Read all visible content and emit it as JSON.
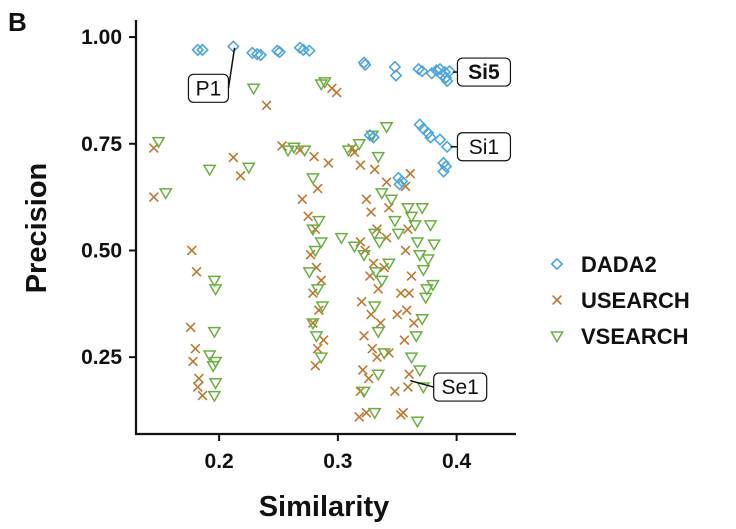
{
  "panel_label": "B",
  "colors": {
    "DADA2": "#4da6dc",
    "USEARCH": "#c07830",
    "VSEARCH": "#6ab040",
    "axis": "#111111"
  },
  "chart_data": {
    "type": "scatter",
    "xlabel": "Similarity",
    "ylabel": "Precision",
    "xlim": [
      0.13,
      0.45
    ],
    "ylim": [
      0.07,
      1.04
    ],
    "x_ticks": [
      0.2,
      0.3,
      0.4
    ],
    "x_tick_labels": [
      "0.2",
      "0.3",
      "0.4"
    ],
    "y_ticks": [
      0.25,
      0.5,
      0.75,
      1.0
    ],
    "y_tick_labels": [
      "0.25",
      "0.50",
      "0.75",
      "1.00"
    ],
    "grid": false,
    "legend_position": "right",
    "series": [
      {
        "name": "DADA2",
        "marker": "diamond-open",
        "points": [
          [
            0.182,
            0.97
          ],
          [
            0.186,
            0.97
          ],
          [
            0.212,
            0.978
          ],
          [
            0.228,
            0.963
          ],
          [
            0.232,
            0.96
          ],
          [
            0.235,
            0.958
          ],
          [
            0.249,
            0.968
          ],
          [
            0.251,
            0.965
          ],
          [
            0.268,
            0.975
          ],
          [
            0.271,
            0.97
          ],
          [
            0.276,
            0.968
          ],
          [
            0.322,
            0.94
          ],
          [
            0.323,
            0.935
          ],
          [
            0.348,
            0.93
          ],
          [
            0.349,
            0.91
          ],
          [
            0.368,
            0.925
          ],
          [
            0.371,
            0.92
          ],
          [
            0.379,
            0.915
          ],
          [
            0.383,
            0.922
          ],
          [
            0.386,
            0.925
          ],
          [
            0.388,
            0.91
          ],
          [
            0.39,
            0.918
          ],
          [
            0.391,
            0.905
          ],
          [
            0.392,
            0.897
          ],
          [
            0.394,
            0.92
          ],
          [
            0.327,
            0.77
          ],
          [
            0.33,
            0.765
          ],
          [
            0.369,
            0.795
          ],
          [
            0.372,
            0.785
          ],
          [
            0.376,
            0.775
          ],
          [
            0.378,
            0.765
          ],
          [
            0.386,
            0.76
          ],
          [
            0.392,
            0.743
          ],
          [
            0.389,
            0.705
          ],
          [
            0.391,
            0.697
          ],
          [
            0.389,
            0.685
          ],
          [
            0.351,
            0.67
          ],
          [
            0.354,
            0.662
          ],
          [
            0.352,
            0.655
          ]
        ]
      },
      {
        "name": "USEARCH",
        "marker": "x",
        "points": [
          [
            0.145,
            0.74
          ],
          [
            0.145,
            0.625
          ],
          [
            0.212,
            0.718
          ],
          [
            0.218,
            0.675
          ],
          [
            0.24,
            0.84
          ],
          [
            0.295,
            0.88
          ],
          [
            0.299,
            0.87
          ],
          [
            0.253,
            0.745
          ],
          [
            0.268,
            0.735
          ],
          [
            0.28,
            0.72
          ],
          [
            0.283,
            0.645
          ],
          [
            0.292,
            0.705
          ],
          [
            0.27,
            0.62
          ],
          [
            0.275,
            0.58
          ],
          [
            0.281,
            0.55
          ],
          [
            0.277,
            0.49
          ],
          [
            0.282,
            0.46
          ],
          [
            0.286,
            0.43
          ],
          [
            0.279,
            0.4
          ],
          [
            0.284,
            0.36
          ],
          [
            0.279,
            0.33
          ],
          [
            0.288,
            0.29
          ],
          [
            0.283,
            0.27
          ],
          [
            0.281,
            0.23
          ],
          [
            0.312,
            0.74
          ],
          [
            0.314,
            0.73
          ],
          [
            0.319,
            0.7
          ],
          [
            0.331,
            0.69
          ],
          [
            0.341,
            0.66
          ],
          [
            0.324,
            0.62
          ],
          [
            0.328,
            0.59
          ],
          [
            0.333,
            0.55
          ],
          [
            0.319,
            0.52
          ],
          [
            0.323,
            0.5
          ],
          [
            0.33,
            0.47
          ],
          [
            0.327,
            0.44
          ],
          [
            0.334,
            0.41
          ],
          [
            0.32,
            0.38
          ],
          [
            0.328,
            0.35
          ],
          [
            0.336,
            0.33
          ],
          [
            0.322,
            0.3
          ],
          [
            0.329,
            0.27
          ],
          [
            0.333,
            0.25
          ],
          [
            0.321,
            0.22
          ],
          [
            0.326,
            0.2
          ],
          [
            0.319,
            0.17
          ],
          [
            0.324,
            0.12
          ],
          [
            0.318,
            0.11
          ],
          [
            0.343,
            0.6
          ],
          [
            0.341,
            0.53
          ],
          [
            0.339,
            0.46
          ],
          [
            0.353,
            0.4
          ],
          [
            0.35,
            0.35
          ],
          [
            0.343,
            0.26
          ],
          [
            0.348,
            0.17
          ],
          [
            0.355,
            0.12
          ],
          [
            0.353,
            0.115
          ],
          [
            0.357,
            0.65
          ],
          [
            0.361,
            0.68
          ],
          [
            0.359,
            0.55
          ],
          [
            0.357,
            0.5
          ],
          [
            0.362,
            0.44
          ],
          [
            0.36,
            0.4
          ],
          [
            0.358,
            0.36
          ],
          [
            0.364,
            0.33
          ],
          [
            0.356,
            0.29
          ],
          [
            0.36,
            0.21
          ],
          [
            0.359,
            0.18
          ],
          [
            0.177,
            0.5
          ],
          [
            0.181,
            0.45
          ],
          [
            0.176,
            0.32
          ],
          [
            0.18,
            0.27
          ],
          [
            0.178,
            0.24
          ],
          [
            0.183,
            0.2
          ],
          [
            0.186,
            0.16
          ],
          [
            0.182,
            0.18
          ]
        ]
      },
      {
        "name": "VSEARCH",
        "marker": "triangle-down-open",
        "points": [
          [
            0.149,
            0.755
          ],
          [
            0.155,
            0.635
          ],
          [
            0.192,
            0.69
          ],
          [
            0.225,
            0.695
          ],
          [
            0.229,
            0.88
          ],
          [
            0.258,
            0.735
          ],
          [
            0.263,
            0.742
          ],
          [
            0.272,
            0.735
          ],
          [
            0.286,
            0.89
          ],
          [
            0.289,
            0.895
          ],
          [
            0.309,
            0.735
          ],
          [
            0.318,
            0.75
          ],
          [
            0.334,
            0.72
          ],
          [
            0.341,
            0.79
          ],
          [
            0.329,
            0.77
          ],
          [
            0.279,
            0.67
          ],
          [
            0.284,
            0.57
          ],
          [
            0.279,
            0.55
          ],
          [
            0.286,
            0.52
          ],
          [
            0.281,
            0.5
          ],
          [
            0.276,
            0.45
          ],
          [
            0.283,
            0.41
          ],
          [
            0.287,
            0.37
          ],
          [
            0.279,
            0.33
          ],
          [
            0.282,
            0.3
          ],
          [
            0.286,
            0.25
          ],
          [
            0.303,
            0.53
          ],
          [
            0.314,
            0.51
          ],
          [
            0.322,
            0.49
          ],
          [
            0.331,
            0.54
          ],
          [
            0.335,
            0.52
          ],
          [
            0.332,
            0.45
          ],
          [
            0.343,
            0.47
          ],
          [
            0.337,
            0.43
          ],
          [
            0.331,
            0.37
          ],
          [
            0.334,
            0.31
          ],
          [
            0.339,
            0.26
          ],
          [
            0.334,
            0.21
          ],
          [
            0.322,
            0.17
          ],
          [
            0.331,
            0.12
          ],
          [
            0.337,
            0.635
          ],
          [
            0.345,
            0.62
          ],
          [
            0.348,
            0.57
          ],
          [
            0.351,
            0.54
          ],
          [
            0.359,
            0.6
          ],
          [
            0.362,
            0.58
          ],
          [
            0.365,
            0.56
          ],
          [
            0.367,
            0.52
          ],
          [
            0.369,
            0.49
          ],
          [
            0.372,
            0.455
          ],
          [
            0.375,
            0.41
          ],
          [
            0.371,
            0.34
          ],
          [
            0.366,
            0.3
          ],
          [
            0.362,
            0.25
          ],
          [
            0.369,
            0.22
          ],
          [
            0.372,
            0.18
          ],
          [
            0.367,
            0.1
          ],
          [
            0.371,
            0.6
          ],
          [
            0.378,
            0.56
          ],
          [
            0.381,
            0.515
          ],
          [
            0.376,
            0.48
          ],
          [
            0.38,
            0.42
          ],
          [
            0.374,
            0.39
          ],
          [
            0.196,
            0.43
          ],
          [
            0.197,
            0.41
          ],
          [
            0.196,
            0.31
          ],
          [
            0.197,
            0.24
          ],
          [
            0.195,
            0.23
          ],
          [
            0.197,
            0.19
          ],
          [
            0.196,
            0.16
          ],
          [
            0.192,
            0.255
          ]
        ]
      }
    ],
    "annotations": [
      {
        "label": "P1",
        "bold": false,
        "x": 0.213,
        "y": 0.975,
        "label_x": 0.191,
        "label_y": 0.88
      },
      {
        "label": "Si5",
        "bold": true,
        "x": 0.397,
        "y": 0.918,
        "label_x": 0.423,
        "label_y": 0.918
      },
      {
        "label": "Si1",
        "bold": false,
        "x": 0.395,
        "y": 0.743,
        "label_x": 0.423,
        "label_y": 0.743
      },
      {
        "label": "Se1",
        "bold": false,
        "x": 0.361,
        "y": 0.195,
        "label_x": 0.403,
        "label_y": 0.18
      }
    ]
  }
}
